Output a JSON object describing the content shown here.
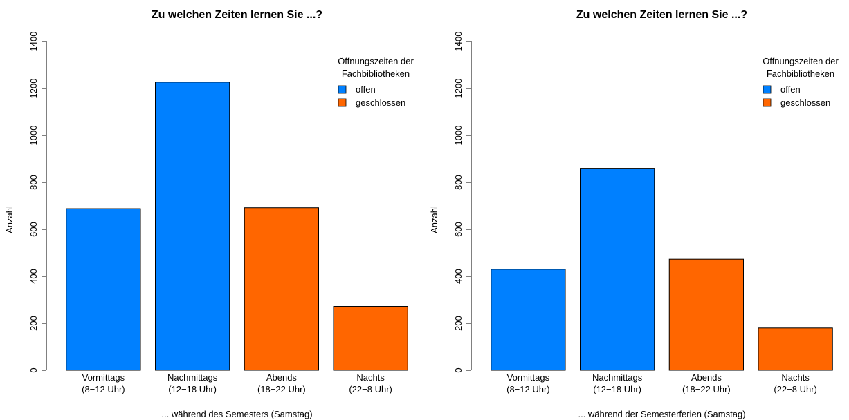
{
  "chart_data": [
    {
      "type": "bar",
      "title": "Zu welchen Zeiten lernen Sie ...?",
      "xlabel": "... während des Semesters (Samstag)",
      "ylabel": "Anzahl",
      "ylim": [
        0,
        1400
      ],
      "yticks": [
        0,
        200,
        400,
        600,
        800,
        1000,
        1200,
        1400
      ],
      "categories": [
        [
          "Vormittags",
          "(8−12 Uhr)"
        ],
        [
          "Nachmittags",
          "(12−18 Uhr)"
        ],
        [
          "Abends",
          "(18−22 Uhr)"
        ],
        [
          "Nachts",
          "(22−8 Uhr)"
        ]
      ],
      "values": [
        688,
        1227,
        692,
        272
      ],
      "bar_group": [
        "offen",
        "offen",
        "geschlossen",
        "geschlossen"
      ],
      "legend": {
        "title": [
          "Öffnungszeiten der",
          "Fachbibliotheken"
        ],
        "position": "top-right",
        "entries": [
          {
            "label": "offen",
            "color": "#0080FF"
          },
          {
            "label": "geschlossen",
            "color": "#FF6600"
          }
        ]
      }
    },
    {
      "type": "bar",
      "title": "Zu welchen Zeiten lernen Sie ...?",
      "xlabel": "... während der Semesterferien (Samstag)",
      "ylabel": "Anzahl",
      "ylim": [
        0,
        1400
      ],
      "yticks": [
        0,
        200,
        400,
        600,
        800,
        1000,
        1200,
        1400
      ],
      "categories": [
        [
          "Vormittags",
          "(8−12 Uhr)"
        ],
        [
          "Nachmittags",
          "(12−18 Uhr)"
        ],
        [
          "Abends",
          "(18−22 Uhr)"
        ],
        [
          "Nachts",
          "(22−8 Uhr)"
        ]
      ],
      "values": [
        430,
        860,
        473,
        180
      ],
      "bar_group": [
        "offen",
        "offen",
        "geschlossen",
        "geschlossen"
      ],
      "legend": {
        "title": [
          "Öffnungszeiten der",
          "Fachbibliotheken"
        ],
        "position": "top-right",
        "entries": [
          {
            "label": "offen",
            "color": "#0080FF"
          },
          {
            "label": "geschlossen",
            "color": "#FF6600"
          }
        ]
      }
    }
  ]
}
